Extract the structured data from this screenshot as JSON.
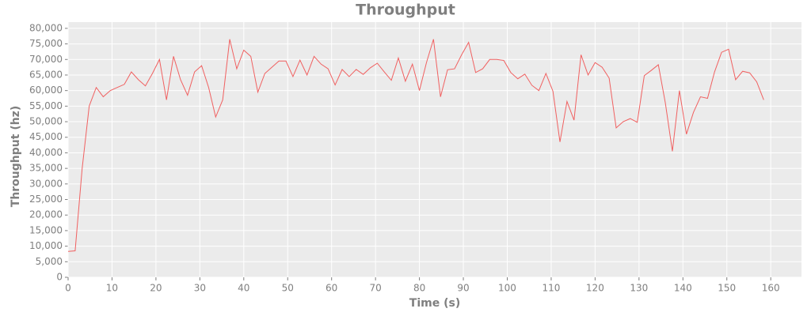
{
  "chart_data": {
    "type": "line",
    "title": "Throughput",
    "xlabel": "Time (s)",
    "ylabel": "Throughput (hz)",
    "x": [
      0,
      1.6,
      3.2,
      4.8,
      6.4,
      8,
      9.6,
      11.2,
      12.8,
      14.4,
      16,
      17.6,
      19.2,
      20.8,
      22.4,
      24,
      25.6,
      27.2,
      28.8,
      30.4,
      32,
      33.6,
      35.2,
      36.8,
      38.4,
      40,
      41.6,
      43.2,
      44.8,
      46.4,
      48,
      49.6,
      51.2,
      52.8,
      54.4,
      56,
      57.6,
      59.2,
      60.8,
      62.4,
      64,
      65.6,
      67.2,
      68.8,
      70.4,
      72,
      73.6,
      75.2,
      76.8,
      78.4,
      80,
      81.6,
      83.2,
      84.8,
      86.4,
      88,
      89.6,
      91.2,
      92.8,
      94.4,
      96,
      97.6,
      99.2,
      100.8,
      102.4,
      104,
      105.6,
      107.2,
      108.8,
      110.4,
      112,
      113.6,
      115.2,
      116.8,
      118.4,
      120,
      121.6,
      123.2,
      124.8,
      126.4,
      128,
      129.6,
      131.2,
      132.8,
      134.4,
      136,
      137.6,
      139.2,
      140.8,
      142.4,
      144,
      145.6,
      147.2,
      148.8,
      150.4,
      152,
      153.6,
      155.2,
      156.8,
      158.4
    ],
    "series": [
      {
        "color": "#f06060",
        "values": [
          8300,
          8500,
          35000,
          55000,
          61000,
          58000,
          60000,
          61000,
          62000,
          66000,
          63500,
          61500,
          65500,
          70000,
          57000,
          71000,
          63500,
          58500,
          66000,
          68000,
          61000,
          51500,
          57000,
          76500,
          67000,
          73000,
          71000,
          59500,
          65500,
          67500,
          69500,
          69500,
          64500,
          69800,
          65000,
          71000,
          68500,
          67000,
          61800,
          66800,
          64500,
          66800,
          65200,
          67300,
          68800,
          66000,
          63300,
          70500,
          63000,
          68500,
          60000,
          69000,
          76500,
          58000,
          66700,
          67000,
          71500,
          75500,
          65800,
          67000,
          70000,
          70000,
          69700,
          65800,
          63800,
          65300,
          61700,
          60000,
          65500,
          59800,
          43500,
          56500,
          50500,
          71500,
          65000,
          69000,
          67500,
          64000,
          48000,
          50000,
          51000,
          49800,
          64800,
          66500,
          68300,
          56000,
          40500,
          60000,
          46000,
          53000,
          58000,
          57500,
          66000,
          72300,
          73300,
          63500,
          66200,
          65700,
          62800,
          57000
        ]
      }
    ],
    "xlim": [
      0,
      167
    ],
    "xticks": [
      0,
      10,
      20,
      30,
      40,
      50,
      60,
      70,
      80,
      90,
      100,
      110,
      120,
      130,
      140,
      150,
      160
    ],
    "ylim": [
      0,
      82000
    ],
    "yticks": [
      0,
      {
        "value": 5000,
        "label": "5,000"
      },
      {
        "value": 10000,
        "label": "10,000"
      },
      {
        "value": 15000,
        "label": "15,000"
      },
      {
        "value": 20000,
        "label": "20,000"
      },
      {
        "value": 25000,
        "label": "25,000"
      },
      {
        "value": 30000,
        "label": "30,000"
      },
      {
        "value": 35000,
        "label": "35,000"
      },
      {
        "value": 40000,
        "label": "40,000"
      },
      {
        "value": 45000,
        "label": "45,000"
      },
      {
        "value": 50000,
        "label": "50,000"
      },
      {
        "value": 55000,
        "label": "55,000"
      },
      {
        "value": 60000,
        "label": "60,000"
      },
      {
        "value": 65000,
        "label": "65,000"
      },
      {
        "value": 70000,
        "label": "70,000"
      },
      {
        "value": 75000,
        "label": "75,000"
      },
      {
        "value": 80000,
        "label": "80,000"
      }
    ],
    "grid": true
  }
}
